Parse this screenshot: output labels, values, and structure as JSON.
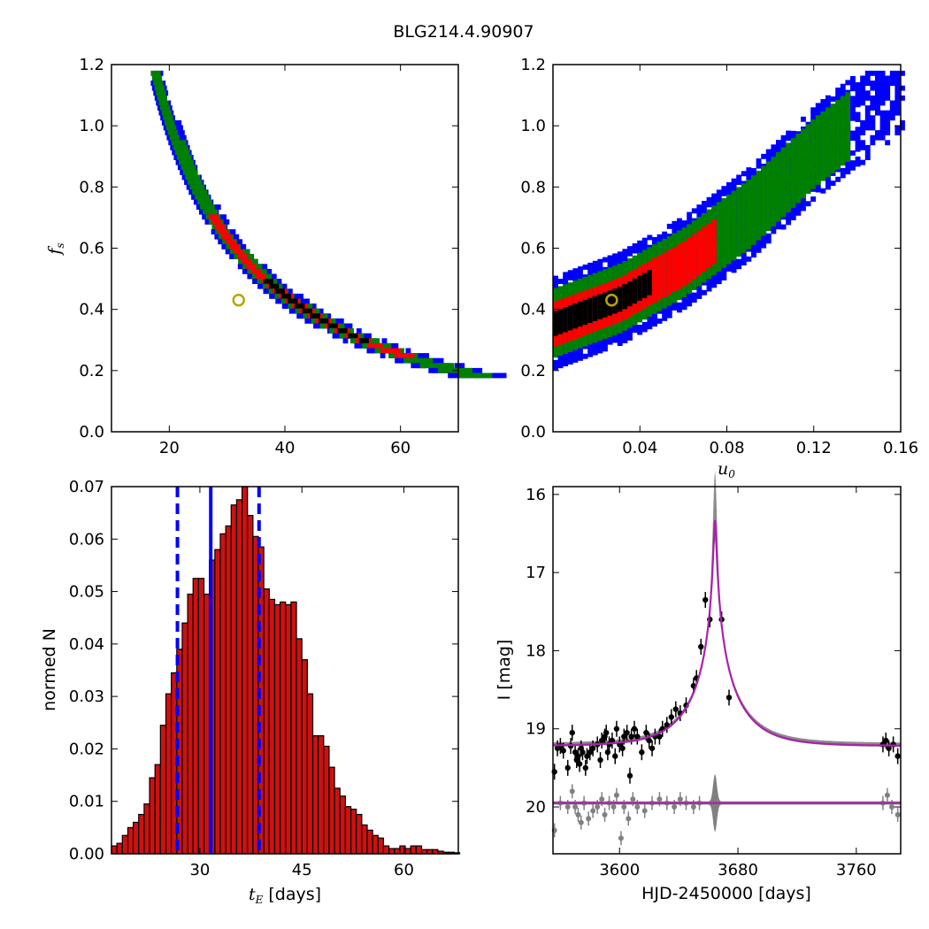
{
  "title": "BLG214.4.90907",
  "colors": {
    "blue": "#0000ff",
    "green": "#008000",
    "red": "#ff0000",
    "black": "#000000",
    "hist_fill": "#cc1111",
    "marker": "#b5a800",
    "model": "#aa22aa",
    "gray": "#808080"
  },
  "chart_data": [
    {
      "id": "tE_vs_fs",
      "type": "heatmap",
      "xlabel": "",
      "ylabel": "f_s",
      "xlim": [
        10,
        70
      ],
      "ylim": [
        0.0,
        1.2
      ],
      "xticks": [
        "20",
        "40",
        "60"
      ],
      "yticks": [
        "0.0",
        "0.2",
        "0.4",
        "0.6",
        "0.8",
        "1.0",
        "1.2"
      ],
      "curve": {
        "fs_top": 1.18,
        "fs_bottom": 0.19,
        "x_at_top": 17.5,
        "x_at_bottom": 67,
        "blue_half_width": 1.6,
        "green_half_width": 1.0,
        "red_half_width": 0.55,
        "black_half_width": 0.3
      },
      "best_fit": {
        "x": 32,
        "y": 0.43
      }
    },
    {
      "id": "u0_vs_fs",
      "type": "heatmap",
      "xlabel": "u_0",
      "ylabel": "",
      "xlim": [
        0.0,
        0.16
      ],
      "ylim": [
        0.0,
        1.2
      ],
      "xticks": [
        "0.04",
        "0.08",
        "0.12",
        "0.16"
      ],
      "yticks": [
        "0.0",
        "0.2",
        "0.4",
        "0.6",
        "0.8",
        "1.0",
        "1.2"
      ],
      "band": {
        "centerline": [
          [
            0.0,
            0.36
          ],
          [
            0.03,
            0.44
          ],
          [
            0.06,
            0.56
          ],
          [
            0.09,
            0.72
          ],
          [
            0.12,
            0.92
          ],
          [
            0.16,
            1.14
          ]
        ],
        "blue_half_width": 0.15,
        "green_half_width": 0.11,
        "red_half_width": 0.065,
        "black_half_width": 0.035,
        "blue_x_max": 0.16,
        "green_x_max": 0.135,
        "red_x_max": 0.075,
        "black_x_max": 0.045
      },
      "best_fit": {
        "x": 0.027,
        "y": 0.43
      }
    },
    {
      "id": "tE_histogram",
      "type": "bar",
      "xlabel": "t_E [days]",
      "ylabel": "normed N",
      "xlim": [
        17,
        68
      ],
      "ylim": [
        0.0,
        0.07
      ],
      "xticks": [
        "30",
        "45",
        "60"
      ],
      "yticks": [
        "0.00",
        "0.01",
        "0.02",
        "0.03",
        "0.04",
        "0.05",
        "0.06",
        "0.07"
      ],
      "bin_start": 17,
      "bin_width": 0.8,
      "values": [
        0.0015,
        0.002,
        0.0035,
        0.005,
        0.006,
        0.0075,
        0.0095,
        0.0145,
        0.017,
        0.0245,
        0.0305,
        0.0345,
        0.039,
        0.044,
        0.0495,
        0.0525,
        0.0525,
        0.0495,
        0.056,
        0.058,
        0.061,
        0.0625,
        0.0665,
        0.0675,
        0.07,
        0.0645,
        0.0605,
        0.0585,
        0.0505,
        0.0485,
        0.0475,
        0.048,
        0.0475,
        0.048,
        0.041,
        0.037,
        0.0305,
        0.0225,
        0.0225,
        0.0205,
        0.0165,
        0.0125,
        0.011,
        0.009,
        0.0085,
        0.0075,
        0.0055,
        0.0045,
        0.0035,
        0.003,
        0.0015,
        0.001,
        0.001,
        0.0015,
        0.001,
        0.0015,
        0.0015,
        0.0008,
        0.0008,
        0.0008,
        0.0005,
        0.0003,
        0.0003,
        0.0002
      ],
      "median_line": 31.6,
      "interval_lines": [
        26.7,
        38.7
      ]
    },
    {
      "id": "light_curve",
      "type": "scatter",
      "xlabel": "HJD-2450000 [days]",
      "ylabel": "I [mag]",
      "xlim": [
        3555,
        3790
      ],
      "ylim": [
        20.6,
        15.9
      ],
      "xticks": [
        "3600",
        "3680",
        "3760"
      ],
      "yticks": [
        "16",
        "17",
        "18",
        "19",
        "20"
      ],
      "model": {
        "t0": 3664.5,
        "base": 19.22,
        "peak": 16.33,
        "tE": 31.6,
        "u0": 0.027
      },
      "residual_baseline": 19.95,
      "points": [
        [
          3556,
          19.55
        ],
        [
          3558,
          19.25
        ],
        [
          3560,
          19.22
        ],
        [
          3562,
          19.28
        ],
        [
          3565,
          19.5
        ],
        [
          3567,
          19.22
        ],
        [
          3568,
          19.05
        ],
        [
          3570,
          19.3
        ],
        [
          3571,
          19.4
        ],
        [
          3572,
          19.35
        ],
        [
          3573,
          19.45
        ],
        [
          3574,
          19.25
        ],
        [
          3575,
          19.3
        ],
        [
          3577,
          19.5
        ],
        [
          3578,
          19.35
        ],
        [
          3580,
          19.3
        ],
        [
          3582,
          19.25
        ],
        [
          3585,
          19.2
        ],
        [
          3587,
          19.4
        ],
        [
          3588,
          19.15
        ],
        [
          3590,
          19.1
        ],
        [
          3591,
          19.05
        ],
        [
          3592,
          19.3
        ],
        [
          3593,
          19.2
        ],
        [
          3595,
          19.15
        ],
        [
          3597,
          19.35
        ],
        [
          3598,
          19.0
        ],
        [
          3600,
          19.2
        ],
        [
          3602,
          19.25
        ],
        [
          3603,
          19.1
        ],
        [
          3605,
          19.05
        ],
        [
          3607,
          19.6
        ],
        [
          3608,
          19.1
        ],
        [
          3610,
          19.0
        ],
        [
          3612,
          19.1
        ],
        [
          3615,
          19.3
        ],
        [
          3618,
          19.05
        ],
        [
          3620,
          19.15
        ],
        [
          3622,
          19.25
        ],
        [
          3624,
          19.1
        ],
        [
          3627,
          19.1
        ],
        [
          3629,
          19.0
        ],
        [
          3632,
          18.95
        ],
        [
          3635,
          18.85
        ],
        [
          3638,
          18.75
        ],
        [
          3641,
          18.8
        ],
        [
          3645,
          18.7
        ],
        [
          3650,
          18.45
        ],
        [
          3652,
          18.35
        ],
        [
          3655,
          17.95
        ],
        [
          3658,
          17.35
        ],
        [
          3661,
          17.6
        ],
        [
          3669,
          17.6
        ],
        [
          3674,
          18.6
        ],
        [
          3778,
          19.2
        ],
        [
          3780,
          19.15
        ],
        [
          3782,
          19.25
        ],
        [
          3785,
          19.2
        ],
        [
          3788,
          19.35
        ]
      ],
      "residual_points": [
        [
          3556,
          20.3
        ],
        [
          3560,
          19.95
        ],
        [
          3565,
          20.0
        ],
        [
          3568,
          19.8
        ],
        [
          3570,
          20.0
        ],
        [
          3572,
          20.1
        ],
        [
          3574,
          20.2
        ],
        [
          3576,
          19.95
        ],
        [
          3579,
          20.15
        ],
        [
          3582,
          20.05
        ],
        [
          3585,
          20.0
        ],
        [
          3588,
          19.9
        ],
        [
          3590,
          20.1
        ],
        [
          3593,
          19.95
        ],
        [
          3596,
          20.0
        ],
        [
          3598,
          19.85
        ],
        [
          3601,
          20.4
        ],
        [
          3603,
          20.0
        ],
        [
          3606,
          20.15
        ],
        [
          3609,
          19.9
        ],
        [
          3612,
          20.0
        ],
        [
          3617,
          20.05
        ],
        [
          3622,
          19.95
        ],
        [
          3627,
          19.9
        ],
        [
          3632,
          19.95
        ],
        [
          3637,
          20.0
        ],
        [
          3641,
          19.9
        ],
        [
          3645,
          19.95
        ],
        [
          3650,
          20.0
        ],
        [
          3654,
          19.95
        ],
        [
          3778,
          19.95
        ],
        [
          3781,
          19.85
        ],
        [
          3784,
          20.0
        ],
        [
          3788,
          20.1
        ]
      ]
    }
  ]
}
